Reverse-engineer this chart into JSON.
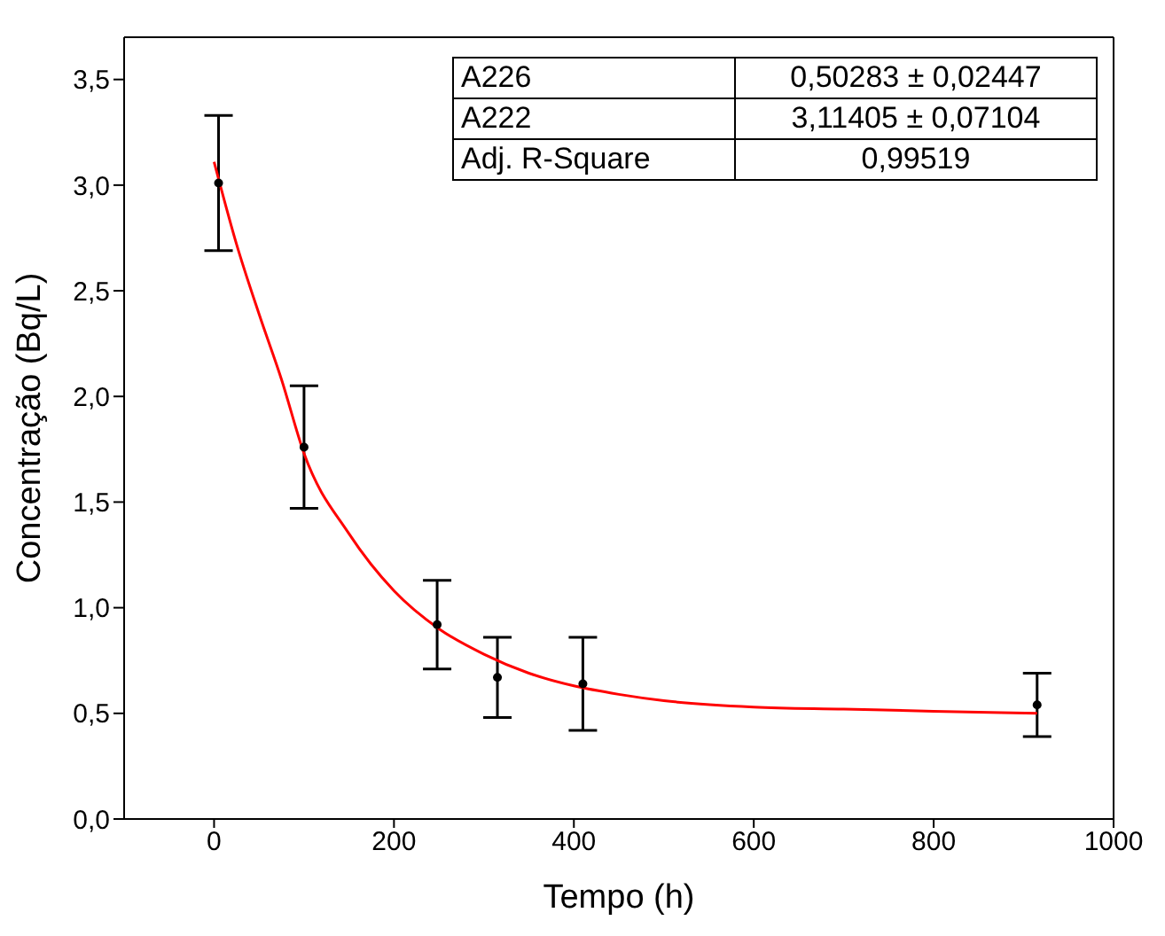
{
  "chart_data": {
    "type": "scatter",
    "xlabel": "Tempo (h)",
    "ylabel": "Concentração (Bq/L)",
    "xlim": [
      -100,
      1000
    ],
    "xticks": [
      0,
      200,
      400,
      600,
      800,
      1000
    ],
    "ylim": [
      0,
      3.7
    ],
    "yticks": [
      {
        "value": 0,
        "label": "0,0"
      },
      {
        "value": 0.5,
        "label": "0,5"
      },
      {
        "value": 1,
        "label": "1,0"
      },
      {
        "value": 1.5,
        "label": "1,5"
      },
      {
        "value": 2,
        "label": "2,0"
      },
      {
        "value": 2.5,
        "label": "2,5"
      },
      {
        "value": 3,
        "label": "3,0"
      },
      {
        "value": 3.5,
        "label": "3,5"
      }
    ],
    "line_style": "solid",
    "annotations": [
      "A226",
      "0,50283 ± 0,02447",
      "A222",
      "3,11405 ± 0,07104",
      "Adj. R-Square",
      "0,99519"
    ],
    "series": [
      {
        "color": "#000000",
        "marker": "circle",
        "x": [
          5,
          100,
          248,
          315,
          410,
          915
        ],
        "values": [
          3.01,
          1.76,
          0.92,
          0.67,
          0.64,
          0.54
        ],
        "errors": [
          0.32,
          0.29,
          0.21,
          0.19,
          0.22,
          0.15
        ]
      },
      {
        "type": "line",
        "marker": "none",
        "color": "#ff0000",
        "x": [
          0,
          25,
          50,
          75,
          100,
          150,
          200,
          250,
          300,
          350,
          400,
          450,
          500,
          600,
          700,
          800,
          915
        ],
        "values": [
          3.11,
          2.72,
          2.39,
          2.08,
          1.73,
          1.35,
          1.08,
          0.9,
          0.78,
          0.69,
          0.63,
          0.59,
          0.56,
          0.53,
          0.52,
          0.51,
          0.5
        ]
      }
    ]
  }
}
